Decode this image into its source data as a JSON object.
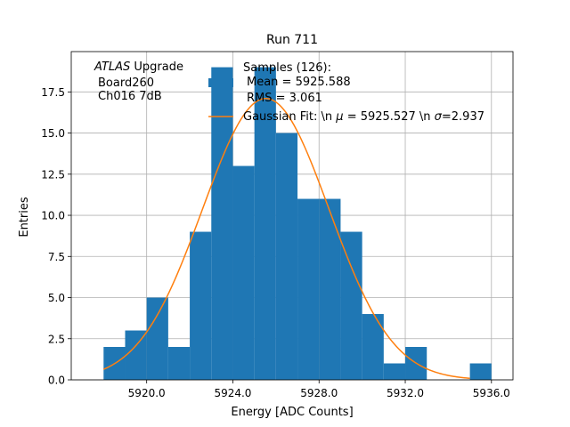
{
  "chart_data": {
    "type": "bar",
    "title": "Run 711",
    "xlabel": "Energy [ADC Counts]",
    "ylabel": "Entries",
    "xlim": [
      5916.5,
      5937.0
    ],
    "ylim": [
      0,
      19.95
    ],
    "grid": true,
    "bin_width": 1,
    "bins": [
      {
        "left": 5918,
        "count": 2
      },
      {
        "left": 5919,
        "count": 3
      },
      {
        "left": 5920,
        "count": 5
      },
      {
        "left": 5921,
        "count": 2
      },
      {
        "left": 5922,
        "count": 9
      },
      {
        "left": 5923,
        "count": 19
      },
      {
        "left": 5924,
        "count": 13
      },
      {
        "left": 5925,
        "count": 19
      },
      {
        "left": 5926,
        "count": 15
      },
      {
        "left": 5927,
        "count": 11
      },
      {
        "left": 5928,
        "count": 11
      },
      {
        "left": 5929,
        "count": 9
      },
      {
        "left": 5930,
        "count": 4
      },
      {
        "left": 5931,
        "count": 1
      },
      {
        "left": 5932,
        "count": 2
      },
      {
        "left": 5933,
        "count": 0
      },
      {
        "left": 5934,
        "count": 0
      },
      {
        "left": 5935,
        "count": 1
      }
    ],
    "x_ticks": [
      {
        "value": 5920,
        "label": "5920.0"
      },
      {
        "value": 5924,
        "label": "5924.0"
      },
      {
        "value": 5928,
        "label": "5928.0"
      },
      {
        "value": 5932,
        "label": "5932.0"
      },
      {
        "value": 5936,
        "label": "5936.0"
      }
    ],
    "y_ticks": [
      {
        "value": 0,
        "label": "0.0"
      },
      {
        "value": 2.5,
        "label": "2.5"
      },
      {
        "value": 5,
        "label": "5.0"
      },
      {
        "value": 7.5,
        "label": "7.5"
      },
      {
        "value": 10,
        "label": "10.0"
      },
      {
        "value": 12.5,
        "label": "12.5"
      },
      {
        "value": 15,
        "label": "15.0"
      },
      {
        "value": 17.5,
        "label": "17.5"
      }
    ],
    "fit": {
      "mu": 5925.527,
      "sigma": 2.937,
      "amplitude": 17.1,
      "x_range": [
        5918,
        5935
      ]
    },
    "annotation": {
      "line1_italic": "ATLAS",
      "line1_rest": " Upgrade",
      "line2": "Board260",
      "line3": "Ch016 7dB"
    },
    "legend": {
      "position": "top-right",
      "entries": [
        {
          "kind": "patch",
          "lines": [
            "Samples (126):",
            "Mean = 5925.588",
            "RMS = 3.061"
          ]
        },
        {
          "kind": "line",
          "text_prefix": "Gaussian Fit: \\n ",
          "mu_symbol": "μ",
          "mu_text": " = 5925.527 \\n ",
          "sigma_symbol": "σ",
          "sigma_text": "=2.937"
        }
      ]
    },
    "colors": {
      "bars": "#1f77b4",
      "fit": "#ff7f0e",
      "grid": "#b0b0b0",
      "axes": "#000000"
    }
  }
}
